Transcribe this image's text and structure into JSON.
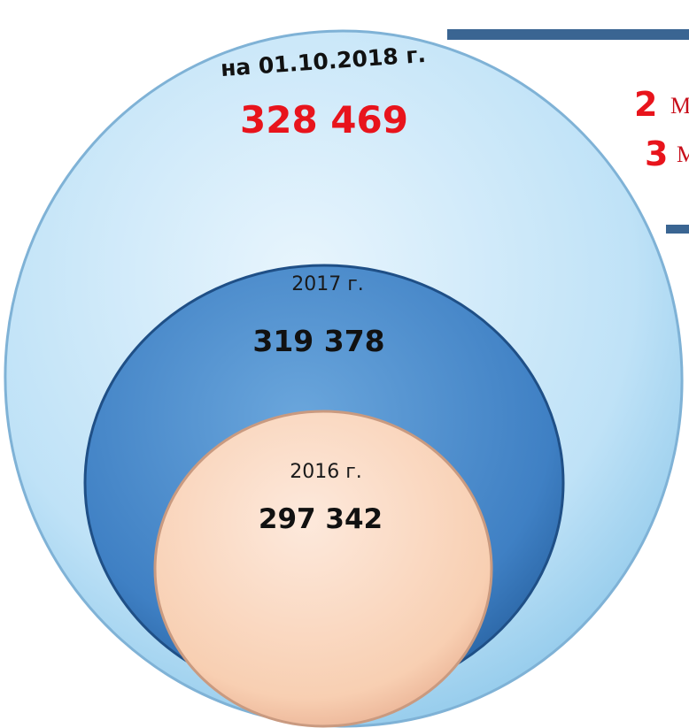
{
  "circles": [
    {
      "label": "на 01.10.2018 г.",
      "value": "328 469"
    },
    {
      "label": "2017 г.",
      "value": "319 378"
    },
    {
      "label": "2016 г.",
      "value": "297 342"
    }
  ],
  "side_items": [
    {
      "number": "2",
      "text": "М"
    },
    {
      "number": "3",
      "text": "М"
    }
  ]
}
